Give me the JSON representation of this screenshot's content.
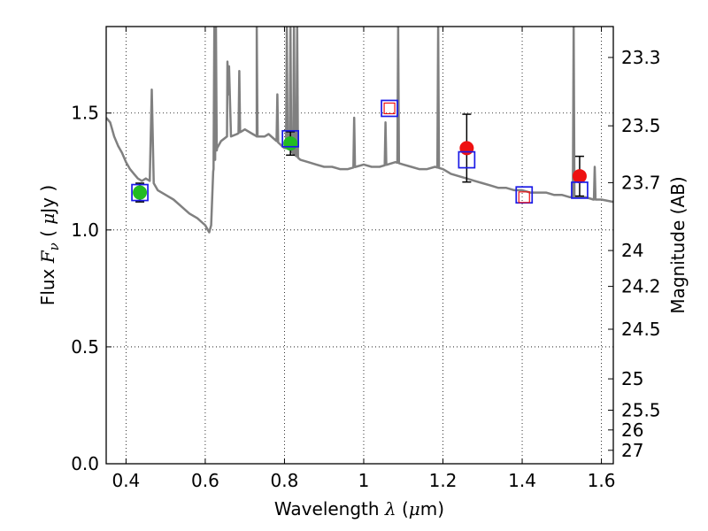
{
  "chart_data": {
    "type": "scatter",
    "xlabel": {
      "prefix": "Wavelength  ",
      "symbol": "λ",
      "paren_open": " (",
      "unit_mu": "μ",
      "unit_rest": "m)"
    },
    "ylabel": {
      "prefix": "Flux  ",
      "symbol": "F",
      "subscript": "ν",
      "paren_open": "  ( ",
      "unit_mu": "μ",
      "unit_rest": "Jy )"
    },
    "y2label": "Magnitude (AB)",
    "xlim": [
      0.35,
      1.63
    ],
    "ylim": [
      0.0,
      1.87
    ],
    "grid": true,
    "grid_style": "dotted",
    "x_ticks": [
      {
        "value": 0.4,
        "label": "0.4"
      },
      {
        "value": 0.6,
        "label": "0.6"
      },
      {
        "value": 0.8,
        "label": "0.8"
      },
      {
        "value": 1.0,
        "label": "1"
      },
      {
        "value": 1.2,
        "label": "1.2"
      },
      {
        "value": 1.4,
        "label": "1.4"
      },
      {
        "value": 1.6,
        "label": "1.6"
      }
    ],
    "y_ticks": [
      {
        "value": 0.0,
        "label": "0.0"
      },
      {
        "value": 0.5,
        "label": "0.5"
      },
      {
        "value": 1.0,
        "label": "1.0"
      },
      {
        "value": 1.5,
        "label": "1.5"
      }
    ],
    "magnitude_ticks": [
      {
        "mag": 23.3,
        "label": "23.3"
      },
      {
        "mag": 23.5,
        "label": "23.5"
      },
      {
        "mag": 23.7,
        "label": "23.7"
      },
      {
        "mag": 24.0,
        "label": "24"
      },
      {
        "mag": 24.2,
        "label": "24.2"
      },
      {
        "mag": 24.5,
        "label": "24.5"
      },
      {
        "mag": 25.0,
        "label": "25"
      },
      {
        "mag": 25.5,
        "label": "25.5"
      },
      {
        "mag": 26.0,
        "label": "26"
      },
      {
        "mag": 27.0,
        "label": "27"
      }
    ],
    "spectrum": {
      "color": "#808080",
      "points": [
        [
          0.35,
          1.48
        ],
        [
          0.36,
          1.46
        ],
        [
          0.37,
          1.4
        ],
        [
          0.38,
          1.36
        ],
        [
          0.39,
          1.33
        ],
        [
          0.4,
          1.29
        ],
        [
          0.41,
          1.26
        ],
        [
          0.42,
          1.24
        ],
        [
          0.43,
          1.22
        ],
        [
          0.44,
          1.21
        ],
        [
          0.45,
          1.22
        ],
        [
          0.46,
          1.21
        ],
        [
          0.465,
          1.6
        ],
        [
          0.47,
          1.2
        ],
        [
          0.48,
          1.17
        ],
        [
          0.5,
          1.15
        ],
        [
          0.52,
          1.13
        ],
        [
          0.54,
          1.1
        ],
        [
          0.56,
          1.07
        ],
        [
          0.58,
          1.05
        ],
        [
          0.6,
          1.02
        ],
        [
          0.61,
          0.99
        ],
        [
          0.615,
          1.02
        ],
        [
          0.62,
          1.25
        ],
        [
          0.63,
          1.35
        ],
        [
          0.64,
          1.38
        ],
        [
          0.655,
          1.4
        ],
        [
          0.66,
          1.7
        ],
        [
          0.665,
          1.4
        ],
        [
          0.68,
          1.41
        ],
        [
          0.69,
          1.42
        ],
        [
          0.7,
          1.43
        ],
        [
          0.72,
          1.41
        ],
        [
          0.73,
          1.4
        ],
        [
          0.75,
          1.4
        ],
        [
          0.76,
          1.41
        ],
        [
          0.78,
          1.38
        ],
        [
          0.8,
          1.35
        ],
        [
          0.81,
          1.35
        ],
        [
          0.82,
          1.33
        ],
        [
          0.84,
          1.3
        ],
        [
          0.86,
          1.29
        ],
        [
          0.88,
          1.28
        ],
        [
          0.9,
          1.27
        ],
        [
          0.92,
          1.27
        ],
        [
          0.94,
          1.26
        ],
        [
          0.96,
          1.26
        ],
        [
          0.98,
          1.27
        ],
        [
          1.0,
          1.28
        ],
        [
          1.02,
          1.27
        ],
        [
          1.04,
          1.27
        ],
        [
          1.06,
          1.28
        ],
        [
          1.08,
          1.29
        ],
        [
          1.1,
          1.28
        ],
        [
          1.12,
          1.27
        ],
        [
          1.14,
          1.26
        ],
        [
          1.16,
          1.26
        ],
        [
          1.18,
          1.27
        ],
        [
          1.2,
          1.26
        ],
        [
          1.22,
          1.24
        ],
        [
          1.24,
          1.23
        ],
        [
          1.26,
          1.22
        ],
        [
          1.28,
          1.21
        ],
        [
          1.3,
          1.2
        ],
        [
          1.32,
          1.19
        ],
        [
          1.34,
          1.18
        ],
        [
          1.36,
          1.18
        ],
        [
          1.38,
          1.17
        ],
        [
          1.4,
          1.17
        ],
        [
          1.42,
          1.16
        ],
        [
          1.44,
          1.16
        ],
        [
          1.46,
          1.16
        ],
        [
          1.48,
          1.15
        ],
        [
          1.5,
          1.15
        ],
        [
          1.52,
          1.14
        ],
        [
          1.54,
          1.14
        ],
        [
          1.56,
          1.14
        ],
        [
          1.58,
          1.13
        ],
        [
          1.6,
          1.13
        ],
        [
          1.63,
          1.12
        ]
      ],
      "emission_lines": [
        {
          "x": 0.623,
          "peak": 1.87
        },
        {
          "x": 0.627,
          "peak": 1.87
        },
        {
          "x": 0.656,
          "peak": 1.72
        },
        {
          "x": 0.686,
          "peak": 1.68
        },
        {
          "x": 0.73,
          "peak": 1.87
        },
        {
          "x": 0.782,
          "peak": 1.58
        },
        {
          "x": 0.806,
          "peak": 1.87
        },
        {
          "x": 0.815,
          "peak": 1.87
        },
        {
          "x": 0.824,
          "peak": 1.87
        },
        {
          "x": 0.832,
          "peak": 1.87
        },
        {
          "x": 0.976,
          "peak": 1.48
        },
        {
          "x": 1.055,
          "peak": 1.46
        },
        {
          "x": 1.087,
          "peak": 1.87
        },
        {
          "x": 1.188,
          "peak": 1.87
        },
        {
          "x": 1.53,
          "peak": 1.87
        },
        {
          "x": 1.583,
          "peak": 1.27
        }
      ]
    },
    "series": [
      {
        "marker": "circle",
        "color": "#22bb22",
        "points": [
          {
            "x": 0.435,
            "y": 1.16,
            "err": 0.04
          },
          {
            "x": 0.815,
            "y": 1.37,
            "err": 0.05
          }
        ]
      },
      {
        "marker": "circle",
        "color": "#ee1111",
        "points": [
          {
            "x": 1.26,
            "y": 1.35,
            "err": 0.145
          },
          {
            "x": 1.545,
            "y": 1.23,
            "err": 0.085
          }
        ]
      },
      {
        "marker": "open-square",
        "color": "#1a1ae6",
        "points": [
          {
            "x": 0.435,
            "y": 1.16
          },
          {
            "x": 0.815,
            "y": 1.39
          },
          {
            "x": 1.065,
            "y": 1.52
          },
          {
            "x": 1.26,
            "y": 1.3
          },
          {
            "x": 1.405,
            "y": 1.15
          },
          {
            "x": 1.545,
            "y": 1.17
          }
        ]
      },
      {
        "marker": "open-square-small",
        "color": "#ee1111",
        "points": [
          {
            "x": 1.065,
            "y": 1.52
          },
          {
            "x": 1.405,
            "y": 1.14
          }
        ]
      }
    ]
  }
}
